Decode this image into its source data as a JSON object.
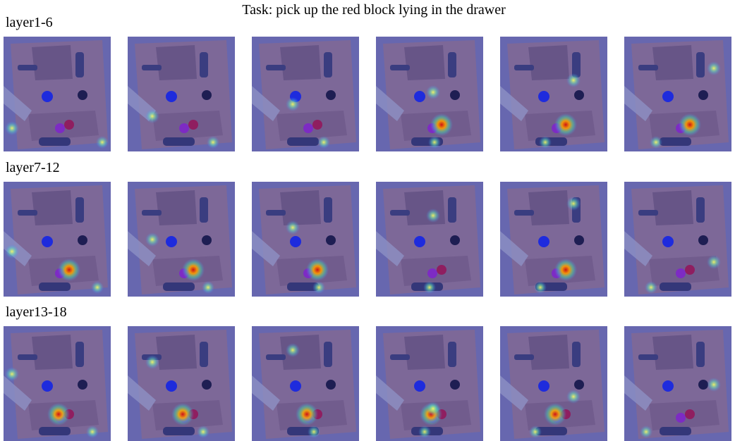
{
  "title": "Task: pick up the red block lying in the drawer",
  "rows": [
    {
      "label": "layer1-6"
    },
    {
      "label": "layer7-12"
    },
    {
      "label": "layer13-18"
    }
  ]
}
